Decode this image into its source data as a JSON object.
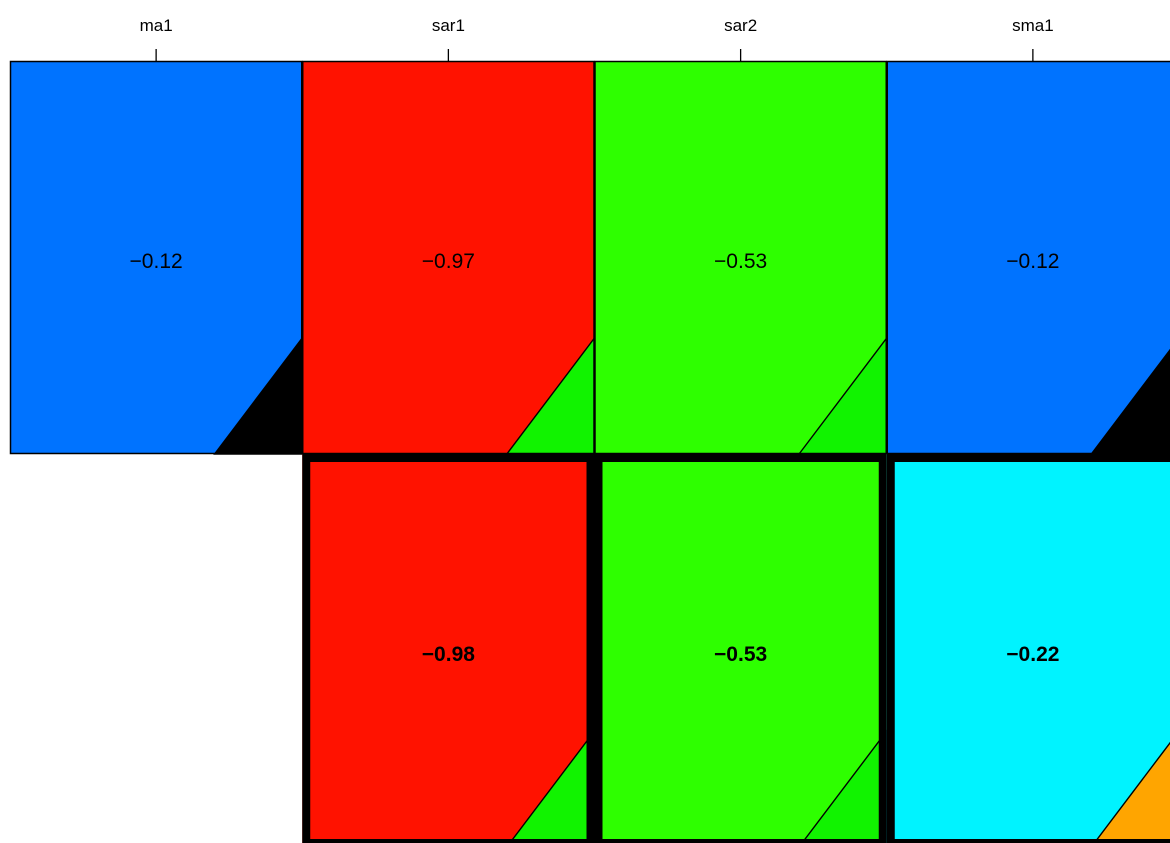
{
  "chart_data": {
    "type": "heatmap",
    "columns": [
      "ma1",
      "sar1",
      "sar2",
      "sma1"
    ],
    "rows": [
      {
        "cells": [
          {
            "column": "ma1",
            "value": -0.12,
            "label": "−0.12",
            "fill": "#0073FF",
            "corner": "#000000"
          },
          {
            "column": "sar1",
            "value": -0.97,
            "label": "−0.97",
            "fill": "#FF1200",
            "corner": "#11F300"
          },
          {
            "column": "sar2",
            "value": -0.53,
            "label": "−0.53",
            "fill": "#2EFF00",
            "corner": "#11F300"
          },
          {
            "column": "sma1",
            "value": -0.12,
            "label": "−0.12",
            "fill": "#0073FF",
            "corner": "#000000"
          }
        ]
      },
      {
        "cells": [
          null,
          {
            "column": "sar1",
            "value": -0.98,
            "label": "−0.98",
            "fill": "#FF1200",
            "corner": "#11F300",
            "emphasis": true
          },
          {
            "column": "sar2",
            "value": -0.53,
            "label": "−0.53",
            "fill": "#2EFF00",
            "corner": "#11F300",
            "emphasis": true
          },
          {
            "column": "sma1",
            "value": -0.22,
            "label": "−0.22",
            "fill": "#00F3FF",
            "corner": "#FFA500",
            "emphasis": true
          }
        ]
      }
    ],
    "grid": false,
    "legend": "none"
  }
}
